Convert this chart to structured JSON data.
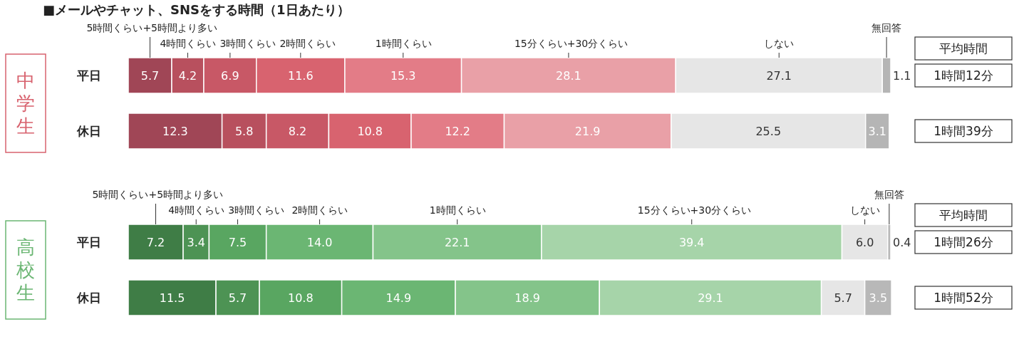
{
  "chart_data": [
    {
      "type": "bar",
      "orientation": "horizontal",
      "stacked": true,
      "title": "■メールやチャット、SNSをする時間（1日あたり）",
      "ylabel": "中学生",
      "categories": [
        "平日",
        "休日"
      ],
      "xlim": [
        0,
        100
      ],
      "tick_labels": false,
      "annotations": [
        "平均時間",
        "1時間12分",
        "1時間39分"
      ],
      "series": [
        {
          "name": "5時間くらい+5時間より多い",
          "color": "#a04656",
          "values": [
            5.7,
            12.3
          ],
          "value_labels": [
            "5.7",
            "12.3"
          ]
        },
        {
          "name": "4時間くらい",
          "color": "#b8505e",
          "values": [
            4.2,
            5.8
          ],
          "value_labels": [
            "4.2",
            "5.8"
          ]
        },
        {
          "name": "3時間くらい",
          "color": "#c85866",
          "values": [
            6.9,
            8.2
          ],
          "value_labels": [
            "6.9",
            "8.2"
          ]
        },
        {
          "name": "2時間くらい",
          "color": "#d8636f",
          "values": [
            11.6,
            10.8
          ],
          "value_labels": [
            "11.6",
            "10.8"
          ]
        },
        {
          "name": "1時間くらい",
          "color": "#e37c87",
          "values": [
            15.3,
            12.2
          ],
          "value_labels": [
            "15.3",
            "12.2"
          ]
        },
        {
          "name": "15分くらい+30分くらい",
          "color": "#e9a0a7",
          "values": [
            28.1,
            21.9
          ],
          "value_labels": [
            "28.1",
            "21.9"
          ]
        },
        {
          "name": "しない",
          "color": "#e6e6e6",
          "values": [
            27.1,
            25.5
          ],
          "value_labels": [
            "27.1",
            "25.5"
          ]
        },
        {
          "name": "無回答",
          "color": "#b5b5b5",
          "values": [
            1.1,
            3.1
          ],
          "value_labels": [
            "1.1",
            "3.1"
          ]
        }
      ]
    },
    {
      "type": "bar",
      "orientation": "horizontal",
      "stacked": true,
      "ylabel": "高校生",
      "categories": [
        "平日",
        "休日"
      ],
      "xlim": [
        0,
        100
      ],
      "tick_labels": false,
      "annotations": [
        "平均時間",
        "1時間26分",
        "1時間52分"
      ],
      "series": [
        {
          "name": "5時間くらい+5時間より多い",
          "color": "#3f7d46",
          "values": [
            7.2,
            11.5
          ],
          "value_labels": [
            "7.2",
            "11.5"
          ]
        },
        {
          "name": "4時間くらい",
          "color": "#4d9354",
          "values": [
            3.4,
            5.7
          ],
          "value_labels": [
            "3.4",
            "5.7"
          ]
        },
        {
          "name": "3時間くらい",
          "color": "#59a661",
          "values": [
            7.5,
            10.8
          ],
          "value_labels": [
            "7.5",
            "10.8"
          ]
        },
        {
          "name": "2時間くらい",
          "color": "#6bb673",
          "values": [
            14.0,
            14.9
          ],
          "value_labels": [
            "14.0",
            "14.9"
          ]
        },
        {
          "name": "1時間くらい",
          "color": "#84c48a",
          "values": [
            22.1,
            18.9
          ],
          "value_labels": [
            "22.1",
            "18.9"
          ]
        },
        {
          "name": "15分くらい+30分くらい",
          "color": "#a6d4a9",
          "values": [
            39.4,
            29.1
          ],
          "value_labels": [
            "39.4",
            "29.1"
          ]
        },
        {
          "name": "しない",
          "color": "#e6e6e6",
          "values": [
            6.0,
            5.7
          ],
          "value_labels": [
            "6.0",
            "5.7"
          ]
        },
        {
          "name": "無回答",
          "color": "#b8b8b8",
          "values": [
            0.4,
            3.5
          ],
          "value_labels": [
            "0.4",
            "3.5"
          ]
        }
      ]
    }
  ]
}
